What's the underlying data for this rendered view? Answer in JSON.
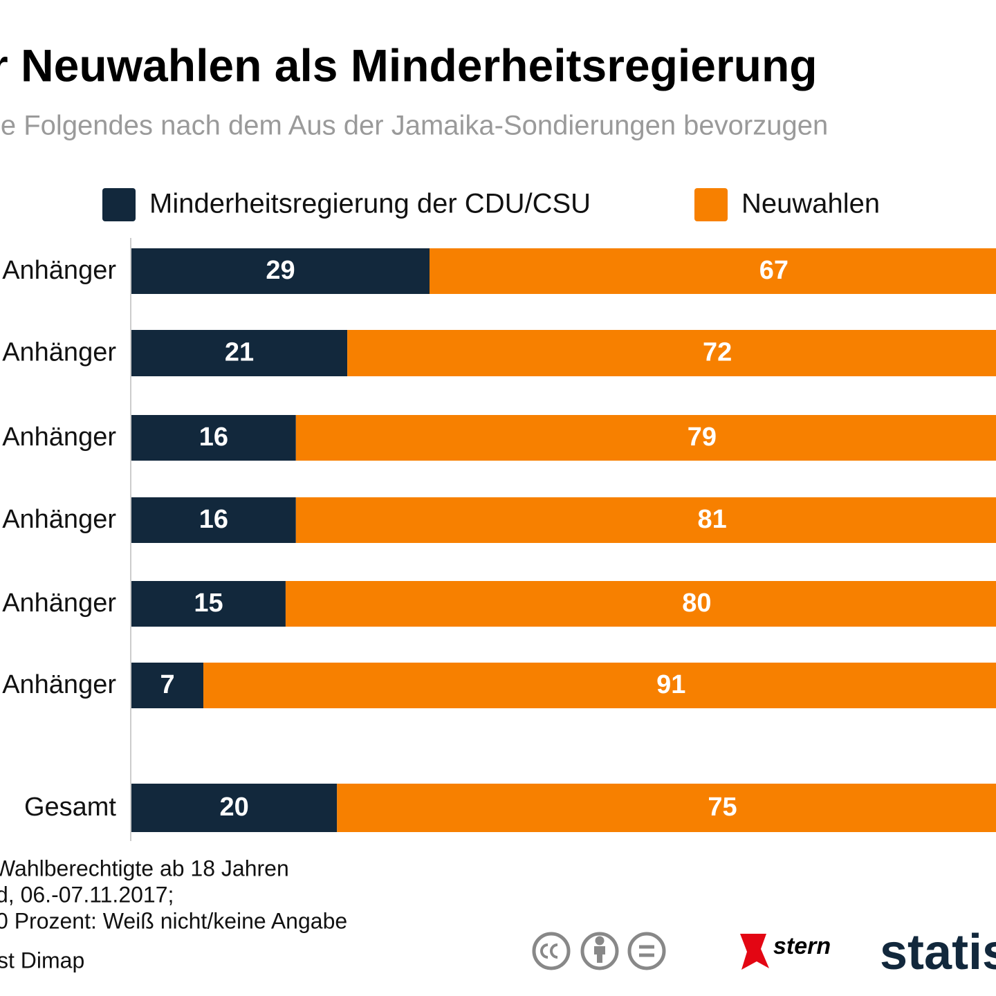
{
  "chart_data": {
    "type": "stacked_bar_horizontal",
    "title": "r Neuwahlen als Minderheitsregierung",
    "subtitle": "ie Folgendes nach dem Aus der Jamaika-Sondierungen bevorzugen",
    "categories": [
      "Anhänger",
      "Anhänger",
      "Anhänger",
      "Anhänger",
      "Anhänger",
      "Anhänger",
      "Gesamt"
    ],
    "series": [
      {
        "name": "Minderheitsregierung der CDU/CSU",
        "color": "#12283c",
        "values": [
          29,
          21,
          16,
          16,
          15,
          7,
          20
        ]
      },
      {
        "name": "Neuwahlen",
        "color": "#f78000",
        "values": [
          67,
          72,
          79,
          81,
          80,
          91,
          75
        ]
      }
    ],
    "xlim": [
      0,
      100
    ],
    "notes": [
      "Wahlberechtigte ab 18 Jahren",
      "d, 06.-07.11.2017;",
      "0 Prozent: Weiß nicht/keine Angabe",
      "st Dimap"
    ],
    "logos": [
      "stern",
      "statist"
    ]
  }
}
